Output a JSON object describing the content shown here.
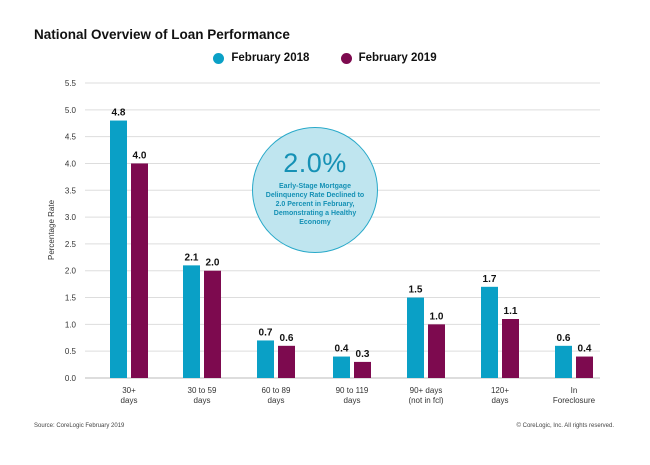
{
  "chart_data": {
    "type": "bar",
    "title": "National Overview of Loan Performance",
    "ylabel": "Percentage Rate",
    "xlabel": "",
    "ylim": [
      0,
      5.5
    ],
    "yticks": [
      "0.0",
      "0.5",
      "1.0",
      "1.5",
      "2.0",
      "2.5",
      "3.0",
      "3.5",
      "4.0",
      "4.5",
      "5.0",
      "5.5"
    ],
    "grid": true,
    "legend_position": "top-center",
    "categories": [
      [
        "30+",
        "days"
      ],
      [
        "30 to 59",
        "days"
      ],
      [
        "60 to 89",
        "days"
      ],
      [
        "90 to 119",
        "days"
      ],
      [
        "90+ days",
        "(not in fcl)"
      ],
      [
        "120+",
        "days"
      ],
      [
        "In",
        "Foreclosure"
      ]
    ],
    "series": [
      {
        "name": "February 2018",
        "color": "#0aa0c6",
        "values": [
          4.8,
          2.1,
          0.7,
          0.4,
          1.5,
          1.7,
          0.6
        ],
        "labels": [
          "4.8",
          "2.1",
          "0.7",
          "0.4",
          "1.5",
          "1.7",
          "0.6"
        ]
      },
      {
        "name": "February 2019",
        "color": "#7d0a4f",
        "values": [
          4.0,
          2.0,
          0.6,
          0.3,
          1.0,
          1.1,
          0.4
        ],
        "labels": [
          "4.0",
          "2.0",
          "0.6",
          "0.3",
          "1.0",
          "1.1",
          "0.4"
        ]
      }
    ],
    "annotation": {
      "value": "2.0%",
      "text": "Early-Stage Mortgage Delinquency Rate Declined to 2.0 Percent in February, Demonstrating a Healthy Economy"
    }
  },
  "footer": {
    "source": "Source: CoreLogic February 2019",
    "copyright": "© CoreLogic, Inc. All rights reserved."
  }
}
